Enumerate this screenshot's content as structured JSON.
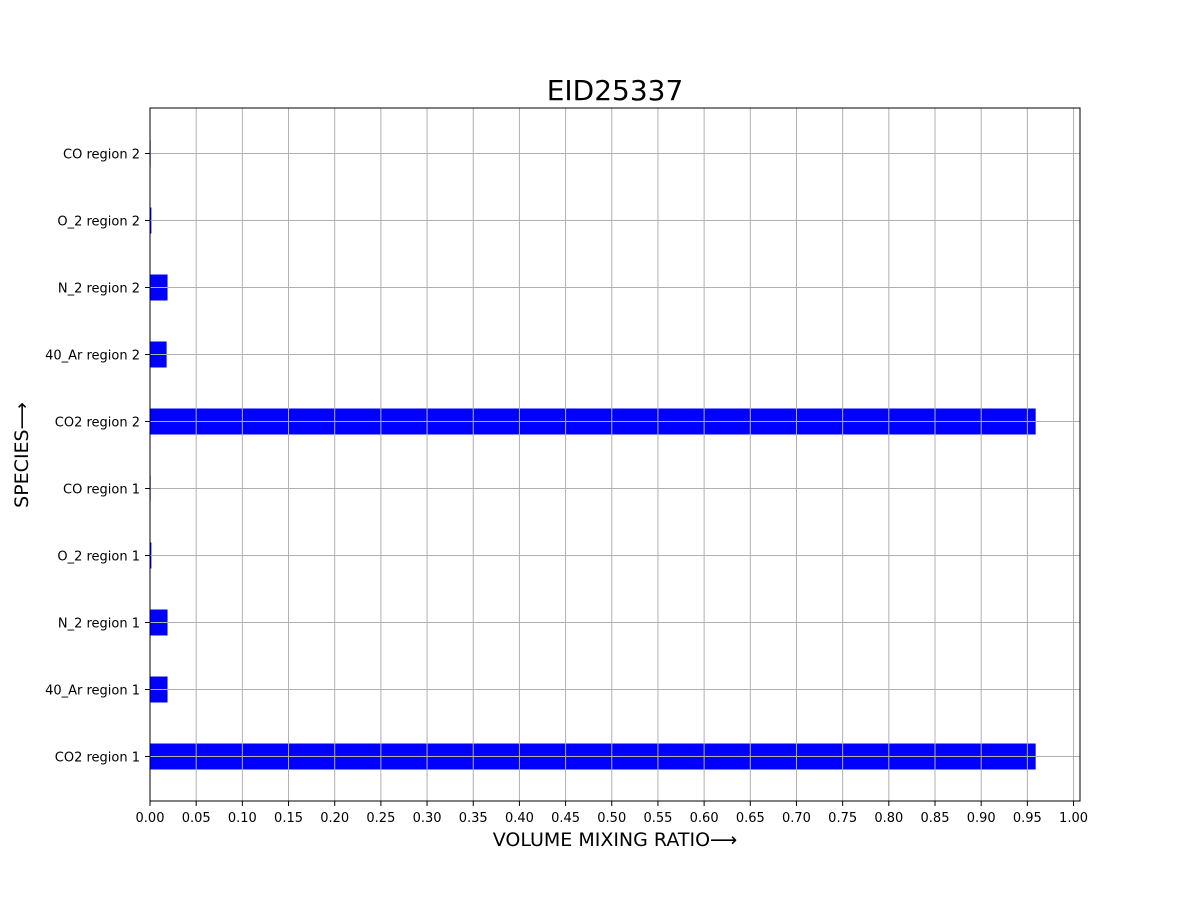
{
  "chart_data": {
    "type": "bar",
    "orientation": "horizontal",
    "title": "EID25337",
    "xlabel": "VOLUME MIXING RATIO⟶",
    "ylabel": "SPECIES⟶",
    "categories": [
      "CO2 region 1",
      "40_Ar region 1",
      "N_2 region 1",
      "O_2 region 1",
      "CO region 1",
      "CO2 region 2",
      "40_Ar region 2",
      "N_2 region 2",
      "O_2 region 2",
      "CO region 2"
    ],
    "values": [
      0.959,
      0.019,
      0.019,
      0.0015,
      0.0007,
      0.959,
      0.018,
      0.019,
      0.0015,
      0.0007
    ],
    "xlim": [
      0,
      1.007
    ],
    "xticks": [
      "0.00",
      "0.05",
      "0.10",
      "0.15",
      "0.20",
      "0.25",
      "0.30",
      "0.35",
      "0.40",
      "0.45",
      "0.50",
      "0.55",
      "0.60",
      "0.65",
      "0.70",
      "0.75",
      "0.80",
      "0.85",
      "0.90",
      "0.95",
      "1.00"
    ],
    "grid": true,
    "colors": {
      "bar": "#0000ff",
      "grid": "#b0b0b0",
      "frame": "#000000"
    }
  }
}
